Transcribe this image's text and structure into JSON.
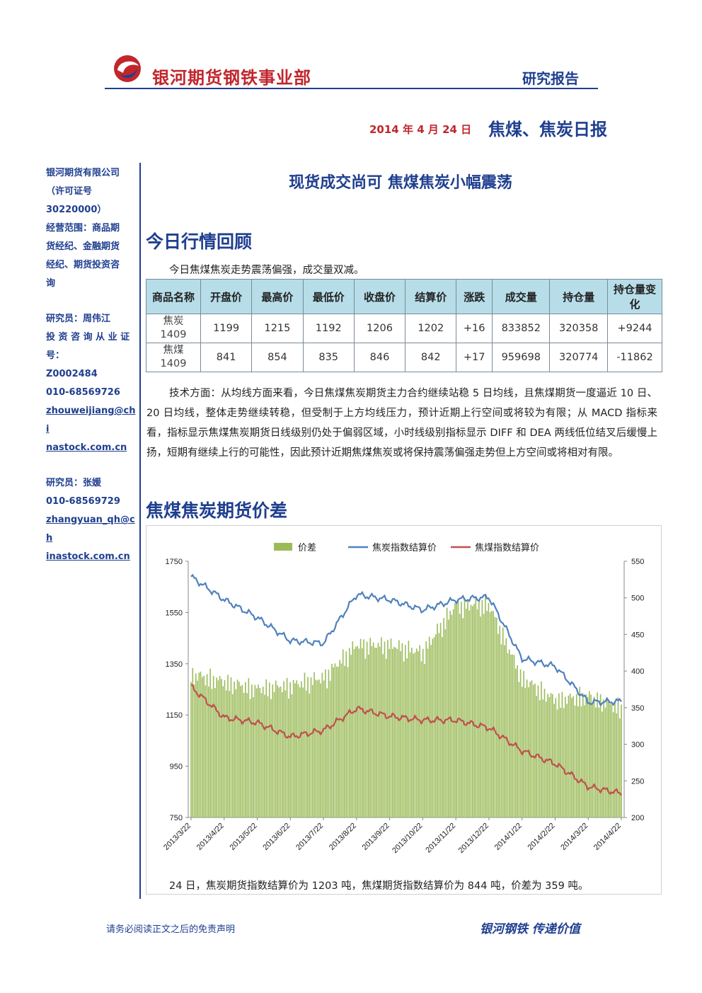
{
  "header": {
    "brand": "银河期货钢铁事业部",
    "report_tag": "研究报告",
    "date": "2014 年 4 月 24 日",
    "report_name": "焦煤、焦炭日报"
  },
  "sidebar": {
    "company_lines": [
      "银河期货有限公司",
      "（许可证号",
      "30220000）",
      "经营范围：商品期",
      "货经纪、金融期货",
      "经纪、期货投资咨",
      "询"
    ],
    "researcher1_lines": [
      "研究员：周伟江",
      "投 资 咨 询 从 业 证",
      "号：",
      "Z0002484",
      "010-68569726"
    ],
    "researcher1_email_lines": [
      "zhouweijiang@chi",
      "nastock.com.cn"
    ],
    "researcher2_lines": [
      "研究员：张媛",
      "010-68569729"
    ],
    "researcher2_email_lines": [
      "zhangyuan_qh@ch",
      "inastock.com.cn"
    ]
  },
  "headline": "现货成交尚可  焦煤焦炭小幅震荡",
  "section1": {
    "title": "今日行情回顾",
    "intro": "今日焦煤焦炭走势震荡偏强，成交量双减。",
    "table": {
      "headers": [
        "商品名称",
        "开盘价",
        "最高价",
        "最低价",
        "收盘价",
        "结算价",
        "涨跌",
        "成交量",
        "持仓量",
        "持仓量变化"
      ],
      "rows": [
        {
          "name_line1": "焦炭",
          "name_line2": "1409",
          "cells": [
            "1199",
            "1215",
            "1192",
            "1206",
            "1202",
            "+16",
            "833852",
            "320358",
            "+9244"
          ]
        },
        {
          "name_line1": "焦煤",
          "name_line2": "1409",
          "cells": [
            "841",
            "854",
            "835",
            "846",
            "842",
            "+17",
            "959698",
            "320774",
            "-11862"
          ]
        }
      ]
    },
    "analysis": "技术方面：从均线方面来看，今日焦煤焦炭期货主力合约继续站稳 5 日均线，且焦煤期货一度逼近 10 日、20 日均线，整体走势继续转稳，但受制于上方均线压力，预计近期上行空间或将较为有限；从 MACD 指标来看，指标显示焦煤焦炭期货日线级别仍处于偏弱区域，小时线级别指标显示 DIFF 和 DEA 两线低位结叉后缓慢上扬，短期有继续上行的可能性，因此预计近期焦煤焦炭或将保持震荡偏强走势但上方空间或将相对有限。"
  },
  "section2": {
    "title": "焦煤焦炭期货价差",
    "caption": "24 日，焦炭期货指数结算价为 1203 吨，焦煤期货指数结算价为 844 吨，价差为 359 吨。"
  },
  "footer": {
    "disclaimer": "请务必阅读正文之后的免责声明",
    "slogan": "银河钢铁   传递价值"
  },
  "colors": {
    "brand_red": "#c0262c",
    "brand_blue": "#1f3f8f",
    "table_header": "#b7dde8",
    "spread_bar": "#9bbb59",
    "coke_line": "#4f81bd",
    "coal_line": "#c0504d"
  },
  "chart_data": {
    "type": "bar",
    "title": "",
    "legend": [
      "价差",
      "焦炭指数结算价",
      "焦煤指数结算价"
    ],
    "legend_position": "top",
    "x_ticks": [
      "2013/3/22",
      "2013/4/22",
      "2013/5/22",
      "2013/6/22",
      "2013/7/22",
      "2013/8/22",
      "2013/9/22",
      "2013/10/22",
      "2013/11/22",
      "2013/12/22",
      "2014/1/22",
      "2014/2/22",
      "2014/3/22",
      "2014/4/22"
    ],
    "left_axis": {
      "ylim": [
        750,
        1750
      ],
      "ticks": [
        750,
        950,
        1150,
        1350,
        1550,
        1750
      ]
    },
    "right_axis": {
      "ylim": [
        200,
        550
      ],
      "ticks": [
        200,
        250,
        300,
        350,
        400,
        450,
        500,
        550
      ]
    },
    "series": [
      {
        "name": "价差",
        "type": "bar",
        "axis": "right",
        "color": "#9bbb59",
        "x": [
          "2013/3/22",
          "2013/4/22",
          "2013/5/22",
          "2013/6/22",
          "2013/7/22",
          "2013/8/22",
          "2013/9/22",
          "2013/10/22",
          "2013/11/22",
          "2013/12/22",
          "2014/1/22",
          "2014/2/22",
          "2014/3/22",
          "2014/4/22"
        ],
        "values": [
          405,
          395,
          385,
          390,
          400,
          445,
          445,
          435,
          500,
          500,
          400,
          370,
          375,
          359
        ]
      },
      {
        "name": "焦炭指数结算价",
        "type": "line",
        "axis": "left",
        "color": "#4f81bd",
        "x": [
          "2013/3/22",
          "2013/4/22",
          "2013/5/22",
          "2013/6/22",
          "2013/7/22",
          "2013/8/22",
          "2013/9/22",
          "2013/10/22",
          "2013/11/22",
          "2013/12/22",
          "2014/1/22",
          "2014/2/22",
          "2014/3/22",
          "2014/4/22"
        ],
        "values": [
          1690,
          1600,
          1530,
          1440,
          1430,
          1620,
          1600,
          1560,
          1600,
          1610,
          1370,
          1340,
          1200,
          1203
        ]
      },
      {
        "name": "焦煤指数结算价",
        "type": "line",
        "axis": "left",
        "color": "#c0504d",
        "x": [
          "2013/3/22",
          "2013/4/22",
          "2013/5/22",
          "2013/6/22",
          "2013/7/22",
          "2013/8/22",
          "2013/9/22",
          "2013/10/22",
          "2013/11/22",
          "2013/12/22",
          "2014/1/22",
          "2014/2/22",
          "2014/3/22",
          "2014/4/22"
        ],
        "values": [
          1260,
          1140,
          1120,
          1065,
          1090,
          1175,
          1145,
          1130,
          1130,
          1100,
          1010,
          960,
          870,
          844
        ]
      }
    ]
  }
}
